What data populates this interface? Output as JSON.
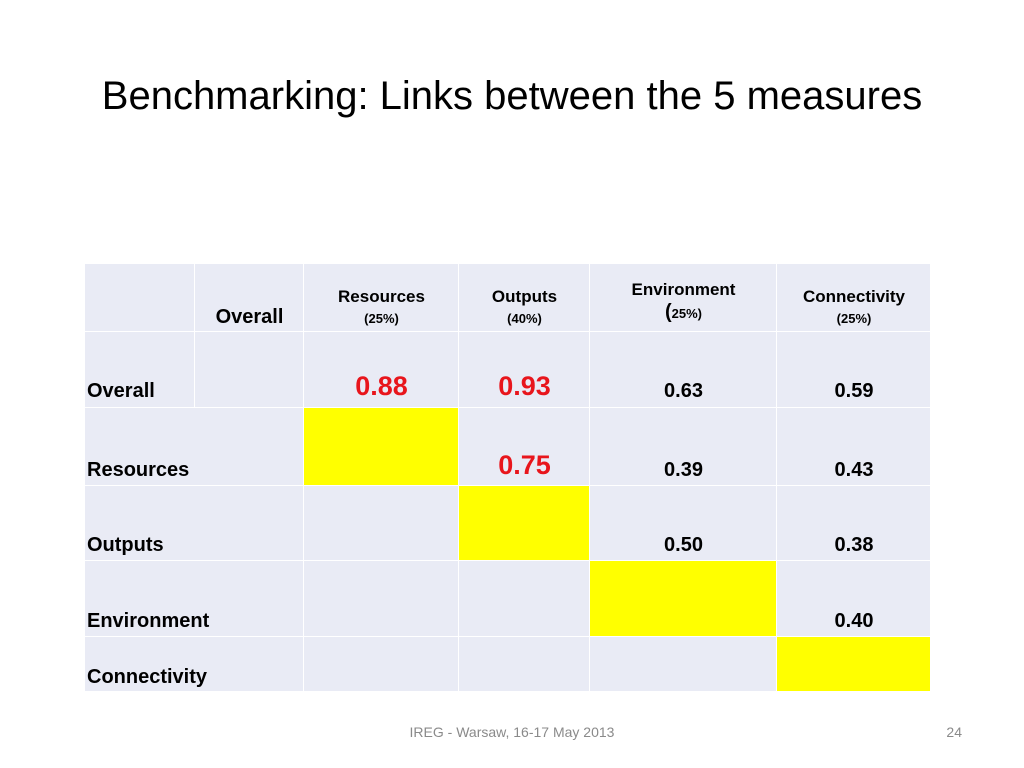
{
  "title": "Benchmarking: Links between the 5 measures",
  "table": {
    "columns": [
      {
        "label": "Overall",
        "weight": ""
      },
      {
        "label": "Resources",
        "weight": "(25%)"
      },
      {
        "label": "Outputs",
        "weight": "(40%)"
      },
      {
        "label": "Environment",
        "weight_prefix": "(",
        "weight": "25%)"
      },
      {
        "label": "Connectivity",
        "weight": "(25%)"
      }
    ],
    "rows": [
      {
        "label": "Overall",
        "values": [
          "",
          "0.88",
          "0.93",
          "0.63",
          "0.59"
        ]
      },
      {
        "label": "Resources",
        "values": [
          "",
          "",
          "0.75",
          "0.39",
          "0.43"
        ]
      },
      {
        "label": "Outputs",
        "values": [
          "",
          "",
          "",
          "0.50",
          "0.38"
        ]
      },
      {
        "label": "Environment",
        "values": [
          "",
          "",
          "",
          "",
          "0.40"
        ]
      },
      {
        "label": "Connectivity",
        "values": [
          "",
          "",
          "",
          "",
          ""
        ]
      }
    ],
    "highlight_color": "#ffff00",
    "emphasis_color": "#e8151c"
  },
  "footer": {
    "text": "IREG - Warsaw, 16-17 May 2013",
    "page_number": "24"
  }
}
